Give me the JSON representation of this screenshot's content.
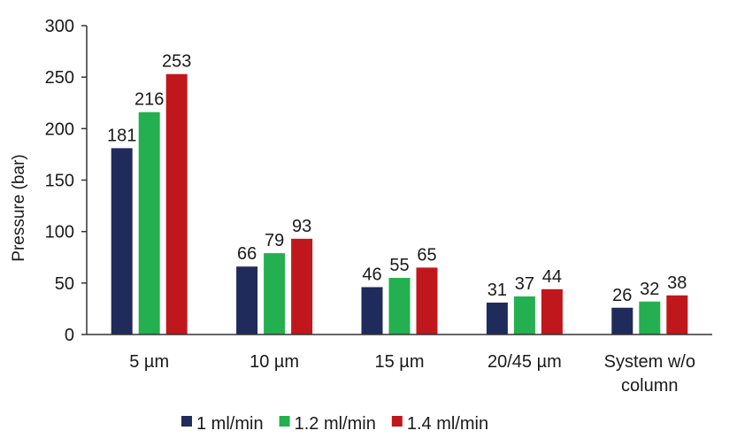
{
  "chart_data": {
    "type": "bar",
    "title": "",
    "xlabel": "",
    "ylabel": "Pressure (bar)",
    "ylim": [
      0,
      300
    ],
    "yticks": [
      0,
      50,
      100,
      150,
      200,
      250,
      300
    ],
    "grid": false,
    "legend": "bottom",
    "categories": [
      [
        "5 µm"
      ],
      [
        "10 µm"
      ],
      [
        "15 µm"
      ],
      [
        "20/45 µm"
      ],
      [
        "System w/o",
        "column"
      ]
    ],
    "series": [
      {
        "name": "1 ml/min",
        "color": "#1f2b5a",
        "values": [
          181,
          66,
          46,
          31,
          26
        ]
      },
      {
        "name": "1.2 ml/min",
        "color": "#24b050",
        "values": [
          216,
          79,
          55,
          37,
          32
        ]
      },
      {
        "name": "1.4 ml/min",
        "color": "#c0171d",
        "values": [
          253,
          93,
          65,
          44,
          38
        ]
      }
    ]
  }
}
